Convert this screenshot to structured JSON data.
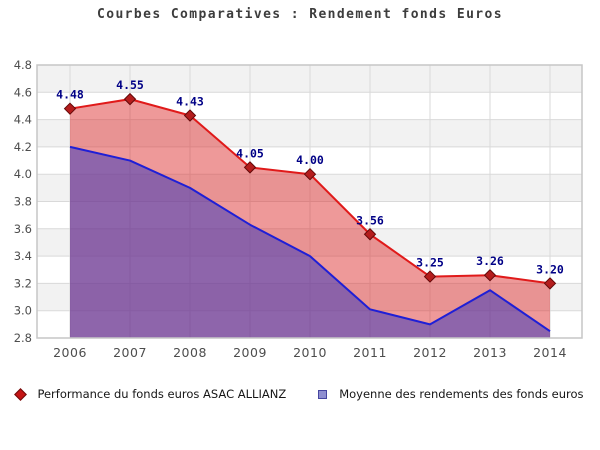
{
  "title": "Courbes Comparatives : Rendement fonds Euros",
  "chart_data": {
    "type": "area",
    "title": "Courbes Comparatives : Rendement fonds Euros",
    "x": [
      2006,
      2007,
      2008,
      2009,
      2010,
      2011,
      2012,
      2013,
      2014
    ],
    "series": [
      {
        "name": "Performance du fonds euros ASAC ALLIANZ",
        "values": [
          4.48,
          4.55,
          4.43,
          4.05,
          4.0,
          3.56,
          3.25,
          3.26,
          3.2
        ],
        "line_color": "#e01a1a",
        "fill_color": "rgba(221,51,51,0.50)",
        "marker": "diamond",
        "marker_color": "#b41d1d",
        "marker_edge": "#640909",
        "show_labels": true
      },
      {
        "name": "Moyenne des rendements des fonds euros",
        "values": [
          4.2,
          4.1,
          3.9,
          3.63,
          3.4,
          3.01,
          2.9,
          3.15,
          2.85
        ],
        "line_color": "#1f1fd6",
        "fill_color": "rgba(64,59,186,0.55)",
        "marker": "none",
        "show_labels": false
      }
    ],
    "xlabel": "",
    "ylabel": "",
    "ylim": [
      2.8,
      4.8
    ],
    "ytick_step": 0.2,
    "grid": true,
    "band_colors": [
      "#f2f2f2",
      "#ffffff"
    ],
    "grid_color": "#d9d9d9",
    "border_color": "#c6c6c6",
    "tick_color": "#4d4d4d",
    "data_label_color": "#000086",
    "legend_position": "bottom"
  },
  "legend": {
    "items": [
      {
        "label": "Performance du fonds euros ASAC ALLIANZ",
        "marker": "diamond",
        "color": "#c41414",
        "border": "#6d0a0a"
      },
      {
        "label": "Moyenne des rendements des fonds euros",
        "marker": "square",
        "color": "#8f8fd0",
        "border": "#4646a0"
      }
    ]
  }
}
